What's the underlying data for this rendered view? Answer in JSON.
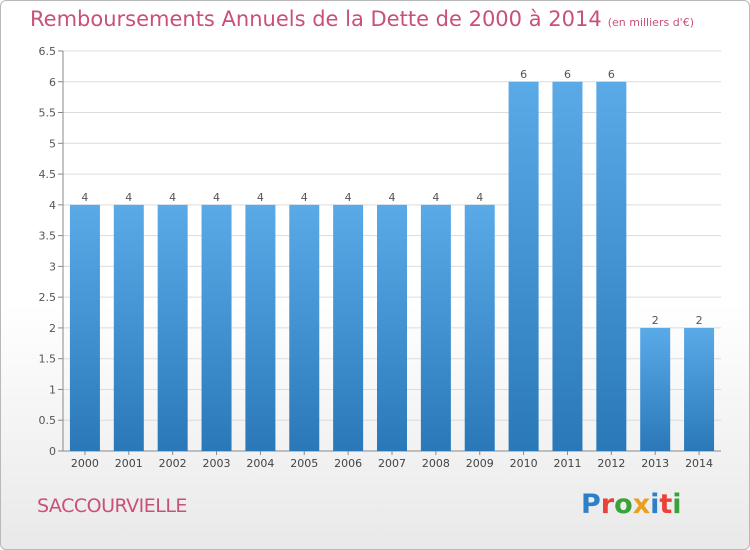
{
  "title": {
    "main": "Remboursements Annuels de la Dette de 2000 à 2014",
    "unit": "(en milliers d'€)"
  },
  "place_name": "SACCOURVIELLE",
  "logo": {
    "text": "Proxiti",
    "letter_colors": [
      "#2e7fc8",
      "#e8423a",
      "#3aa23a",
      "#e8a020",
      "#2e7fc8",
      "#e8423a",
      "#3aa23a"
    ]
  },
  "chart_data": {
    "type": "bar",
    "categories": [
      "2000",
      "2001",
      "2002",
      "2003",
      "2004",
      "2005",
      "2006",
      "2007",
      "2008",
      "2009",
      "2010",
      "2011",
      "2012",
      "2013",
      "2014"
    ],
    "values": [
      4,
      4,
      4,
      4,
      4,
      4,
      4,
      4,
      4,
      4,
      6,
      6,
      6,
      2,
      2
    ],
    "data_labels": [
      "4",
      "4",
      "4",
      "4",
      "4",
      "4",
      "4",
      "4",
      "4",
      "4",
      "6",
      "6",
      "6",
      "2",
      "2"
    ],
    "ylim": [
      0,
      6.5
    ],
    "yticks": [
      0,
      0.5,
      1,
      1.5,
      2,
      2.5,
      3,
      3.5,
      4,
      4.5,
      5,
      5.5,
      6,
      6.5
    ],
    "ytick_labels": [
      "0",
      "0.5",
      "1",
      "1.5",
      "2",
      "2.5",
      "3",
      "3.5",
      "4",
      "4.5",
      "5",
      "5.5",
      "6",
      "6.5"
    ],
    "grid": true,
    "bar_color_top": "#5aaae8",
    "bar_color_bottom": "#2a78b8",
    "title_color": "#c8507a"
  }
}
